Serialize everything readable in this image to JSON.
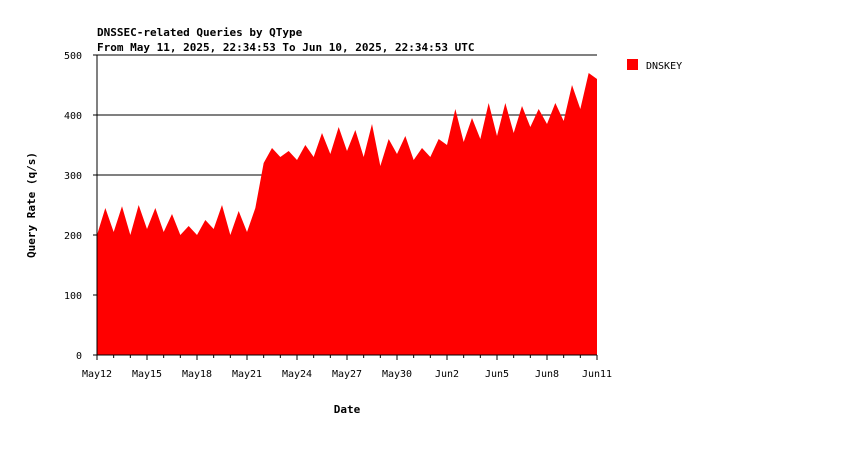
{
  "chart_data": {
    "type": "area",
    "title": "DNSSEC-related Queries by QType",
    "subtitle": "From May 11, 2025, 22:34:53 To Jun 10, 2025, 22:34:53 UTC",
    "xlabel": "Date",
    "ylabel": "Query Rate (q/s)",
    "ylim": [
      0,
      500
    ],
    "yticks": [
      0,
      100,
      200,
      300,
      400,
      500
    ],
    "xlim": [
      "2025-05-12",
      "2025-06-11"
    ],
    "xticks": [
      "May12",
      "May15",
      "May18",
      "May21",
      "May24",
      "May27",
      "May30",
      "Jun2",
      "Jun5",
      "Jun8",
      "Jun11"
    ],
    "gridlines": [
      300,
      400,
      500
    ],
    "legend": {
      "position": "top-right",
      "entries": [
        {
          "name": "DNSKEY",
          "color": "#ff0000"
        }
      ]
    },
    "series": [
      {
        "name": "DNSKEY",
        "color": "#ff0000",
        "x": [
          "2025-05-12",
          "2025-05-12T12",
          "2025-05-13",
          "2025-05-13T12",
          "2025-05-14",
          "2025-05-14T12",
          "2025-05-15",
          "2025-05-15T12",
          "2025-05-16",
          "2025-05-16T12",
          "2025-05-17",
          "2025-05-17T12",
          "2025-05-18",
          "2025-05-18T12",
          "2025-05-19",
          "2025-05-19T12",
          "2025-05-20",
          "2025-05-20T12",
          "2025-05-21",
          "2025-05-21T12",
          "2025-05-22",
          "2025-05-22T12",
          "2025-05-23",
          "2025-05-23T12",
          "2025-05-24",
          "2025-05-24T12",
          "2025-05-25",
          "2025-05-25T12",
          "2025-05-26",
          "2025-05-26T12",
          "2025-05-27",
          "2025-05-27T12",
          "2025-05-28",
          "2025-05-28T12",
          "2025-05-29",
          "2025-05-29T12",
          "2025-05-30",
          "2025-05-30T12",
          "2025-05-31",
          "2025-05-31T12",
          "2025-06-01",
          "2025-06-01T12",
          "2025-06-02",
          "2025-06-02T12",
          "2025-06-03",
          "2025-06-03T12",
          "2025-06-04",
          "2025-06-04T12",
          "2025-06-05",
          "2025-06-05T12",
          "2025-06-06",
          "2025-06-06T12",
          "2025-06-07",
          "2025-06-07T12",
          "2025-06-08",
          "2025-06-08T12",
          "2025-06-09",
          "2025-06-09T12",
          "2025-06-10",
          "2025-06-10T12",
          "2025-06-11"
        ],
        "values": [
          200,
          245,
          205,
          248,
          200,
          250,
          210,
          245,
          205,
          235,
          200,
          215,
          200,
          225,
          210,
          250,
          200,
          240,
          205,
          245,
          320,
          345,
          330,
          340,
          325,
          350,
          330,
          370,
          335,
          380,
          340,
          375,
          330,
          385,
          315,
          360,
          335,
          365,
          325,
          345,
          330,
          360,
          350,
          410,
          355,
          395,
          360,
          420,
          365,
          420,
          370,
          415,
          380,
          410,
          385,
          420,
          390,
          450,
          410,
          470,
          460
        ]
      }
    ]
  }
}
